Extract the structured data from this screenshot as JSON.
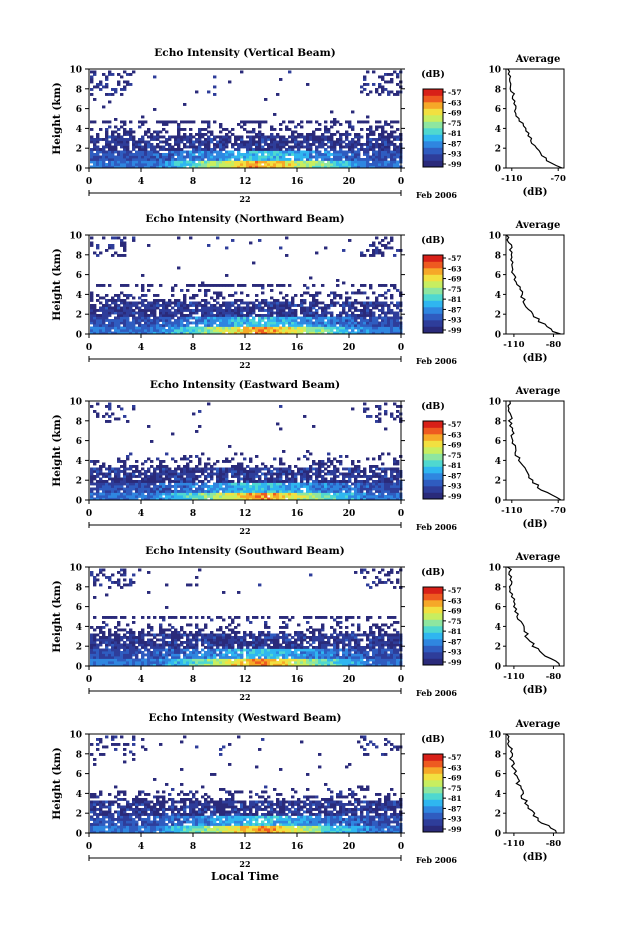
{
  "figure": {
    "x_axis_title": "Local Time",
    "colorbar_unit": "(dB)",
    "colorbar_ticks": [
      "-57",
      "-63",
      "-69",
      "-75",
      "-81",
      "-87",
      "-93",
      "-99"
    ],
    "colorbar_colors": [
      "#2a2a7a",
      "#2e3d9a",
      "#2f5cc0",
      "#2f86e0",
      "#2fb6f0",
      "#4fd8d0",
      "#8ee6a0",
      "#c8ee60",
      "#f2e040",
      "#f6a828",
      "#ee5a20",
      "#d82018"
    ],
    "avg_title": "Average",
    "avg_xlabel": "(dB)"
  },
  "chart_data": [
    {
      "type": "heatmap",
      "title": "Echo Intensity (Vertical Beam)",
      "ylabel": "Height (km)",
      "xlim": [
        0,
        24
      ],
      "ylim": [
        0,
        10
      ],
      "x_ticks": [
        "0",
        "4",
        "8",
        "12",
        "16",
        "20",
        "0"
      ],
      "y_ticks": [
        "0",
        "2",
        "4",
        "6",
        "8",
        "10"
      ],
      "date_day": "22",
      "date_label": "Feb 2006",
      "echo_layer_top_km": 4.7,
      "aloft_echo_km": [
        7.5,
        10
      ],
      "colorbar_dB": {
        "min": -99,
        "max": -57
      },
      "average_profile": {
        "type": "line",
        "x_ticks": [
          "-110",
          "-70"
        ],
        "xlim": [
          -115,
          -65
        ],
        "y_ticks": [
          "0",
          "2",
          "4",
          "6",
          "8",
          "10"
        ],
        "ylim": [
          0,
          10
        ],
        "height_km": [
          0,
          1,
          2,
          3,
          4,
          5,
          6,
          7,
          8,
          9,
          10
        ],
        "dB": [
          -68,
          -82,
          -90,
          -94,
          -99,
          -104,
          -107,
          -109,
          -110,
          -111,
          -112
        ]
      }
    },
    {
      "type": "heatmap",
      "title": "Echo Intensity (Northward Beam)",
      "ylabel": "Height (km)",
      "xlim": [
        0,
        24
      ],
      "ylim": [
        0,
        10
      ],
      "x_ticks": [
        "0",
        "4",
        "8",
        "12",
        "16",
        "20",
        "0"
      ],
      "y_ticks": [
        "0",
        "2",
        "4",
        "6",
        "8",
        "10"
      ],
      "date_day": "22",
      "date_label": "Feb 2006",
      "echo_layer_top_km": 4.9,
      "aloft_echo_km": [
        8,
        10
      ],
      "colorbar_dB": {
        "min": -99,
        "max": -57
      },
      "average_profile": {
        "type": "line",
        "x_ticks": [
          "-110",
          "-80"
        ],
        "xlim": [
          -116,
          -72
        ],
        "y_ticks": [
          "0",
          "2",
          "4",
          "6",
          "8",
          "10"
        ],
        "ylim": [
          0,
          10
        ],
        "height_km": [
          0,
          1,
          2,
          3,
          4,
          5,
          6,
          7,
          8,
          9,
          10
        ],
        "dB": [
          -76,
          -88,
          -96,
          -101,
          -104,
          -107,
          -110,
          -111,
          -112,
          -113,
          -114
        ]
      }
    },
    {
      "type": "heatmap",
      "title": "Echo Intensity (Eastward Beam)",
      "ylabel": "Height (km)",
      "xlim": [
        0,
        24
      ],
      "ylim": [
        0,
        10
      ],
      "x_ticks": [
        "0",
        "4",
        "8",
        "12",
        "16",
        "20",
        "0"
      ],
      "y_ticks": [
        "0",
        "2",
        "4",
        "6",
        "8",
        "10"
      ],
      "date_day": "22",
      "date_label": "Feb 2006",
      "echo_layer_top_km": 4.8,
      "aloft_echo_km": [
        8,
        10
      ],
      "colorbar_dB": {
        "min": -99,
        "max": -57
      },
      "average_profile": {
        "type": "line",
        "x_ticks": [
          "-110",
          "-70"
        ],
        "xlim": [
          -115,
          -65
        ],
        "y_ticks": [
          "0",
          "2",
          "4",
          "6",
          "8",
          "10"
        ],
        "ylim": [
          0,
          10
        ],
        "height_km": [
          0,
          1,
          2,
          3,
          4,
          5,
          6,
          7,
          8,
          9,
          10
        ],
        "dB": [
          -68,
          -84,
          -93,
          -99,
          -104,
          -107,
          -109,
          -110,
          -111,
          -112,
          -113
        ]
      }
    },
    {
      "type": "heatmap",
      "title": "Echo Intensity (Southward Beam)",
      "ylabel": "Height (km)",
      "xlim": [
        0,
        24
      ],
      "ylim": [
        0,
        10
      ],
      "x_ticks": [
        "0",
        "4",
        "8",
        "12",
        "16",
        "20",
        "0"
      ],
      "y_ticks": [
        "0",
        "2",
        "4",
        "6",
        "8",
        "10"
      ],
      "date_day": "22",
      "date_label": "Feb 2006",
      "echo_layer_top_km": 4.9,
      "aloft_echo_km": [
        8,
        10
      ],
      "colorbar_dB": {
        "min": -99,
        "max": -57
      },
      "average_profile": {
        "type": "line",
        "x_ticks": [
          "-110",
          "-80"
        ],
        "xlim": [
          -116,
          -72
        ],
        "y_ticks": [
          "0",
          "2",
          "4",
          "6",
          "8",
          "10"
        ],
        "ylim": [
          0,
          10
        ],
        "height_km": [
          0,
          1,
          2,
          3,
          4,
          5,
          6,
          7,
          8,
          9,
          10
        ],
        "dB": [
          -74,
          -86,
          -95,
          -100,
          -104,
          -107,
          -110,
          -111,
          -112,
          -113,
          -114
        ]
      }
    },
    {
      "type": "heatmap",
      "title": "Echo Intensity (Westward Beam)",
      "ylabel": "Height (km)",
      "xlim": [
        0,
        24
      ],
      "ylim": [
        0,
        10
      ],
      "x_ticks": [
        "0",
        "4",
        "8",
        "12",
        "16",
        "20",
        "0"
      ],
      "y_ticks": [
        "0",
        "2",
        "4",
        "6",
        "8",
        "10"
      ],
      "date_day": "22",
      "date_label": "Feb 2006",
      "echo_layer_top_km": 4.8,
      "aloft_echo_km": [
        8,
        10
      ],
      "colorbar_dB": {
        "min": -99,
        "max": -57
      },
      "average_profile": {
        "type": "line",
        "x_ticks": [
          "-110",
          "-80"
        ],
        "xlim": [
          -116,
          -72
        ],
        "y_ticks": [
          "0",
          "2",
          "4",
          "6",
          "8",
          "10"
        ],
        "ylim": [
          0,
          10
        ],
        "height_km": [
          0,
          1,
          2,
          3,
          4,
          5,
          6,
          7,
          8,
          9,
          10
        ],
        "dB": [
          -76,
          -88,
          -96,
          -101,
          -104,
          -107,
          -109,
          -111,
          -112,
          -113,
          -114
        ]
      }
    }
  ]
}
